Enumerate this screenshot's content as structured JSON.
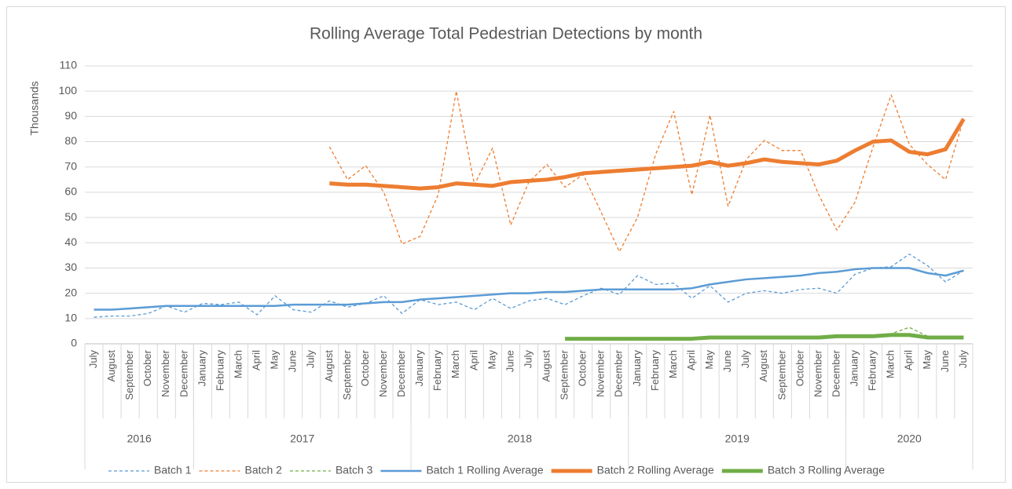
{
  "chart_data": {
    "type": "line",
    "title": "Rolling Average Total Pedestrian Detections by month",
    "y_label": "Thousands",
    "categories": [
      "July",
      "August",
      "September",
      "October",
      "November",
      "December",
      "January",
      "February",
      "March",
      "April",
      "May",
      "June",
      "July",
      "August",
      "September",
      "October",
      "November",
      "December",
      "January",
      "February",
      "March",
      "April",
      "May",
      "June",
      "July",
      "August",
      "September",
      "October",
      "November",
      "December",
      "January",
      "February",
      "March",
      "April",
      "May",
      "June",
      "July",
      "August",
      "September",
      "October",
      "November",
      "December",
      "January",
      "February",
      "March",
      "April",
      "May",
      "June",
      "July"
    ],
    "category_groups": [
      {
        "label": "2016",
        "size": 6
      },
      {
        "label": "2017",
        "size": 12
      },
      {
        "label": "2018",
        "size": 12
      },
      {
        "label": "2019",
        "size": 12
      },
      {
        "label": "2020",
        "size": 7
      }
    ],
    "ylim": [
      0,
      110
    ],
    "yticks": [
      0,
      10,
      20,
      30,
      40,
      50,
      60,
      70,
      80,
      90,
      100,
      110
    ],
    "grid": true,
    "legend": "bottom",
    "series": [
      {
        "name": "Batch 1",
        "color": "#5b9bd5",
        "style": "dashed",
        "line_width": 1.3,
        "values": [
          10.5,
          11,
          11,
          12,
          15,
          12.5,
          16,
          15.5,
          16.5,
          11.5,
          19,
          13.5,
          12.5,
          17,
          14.5,
          16,
          19,
          12,
          17.5,
          15.5,
          16.5,
          13.5,
          18,
          14,
          17,
          18,
          15.5,
          19,
          22,
          19.5,
          27,
          23.5,
          24,
          18,
          23,
          16.5,
          20,
          21,
          20,
          21.5,
          22,
          20,
          27.5,
          30,
          30.5,
          35.5,
          31,
          24.5,
          29
        ]
      },
      {
        "name": "Batch 2",
        "color": "#ed7d31",
        "style": "dashed",
        "line_width": 1.3,
        "values": [
          null,
          null,
          null,
          null,
          null,
          null,
          null,
          null,
          null,
          null,
          null,
          null,
          null,
          78,
          65,
          70.5,
          60,
          39.5,
          42.5,
          59,
          100,
          63,
          77.5,
          47,
          64,
          71,
          62,
          67,
          52,
          36.5,
          50,
          75,
          92,
          59,
          90.5,
          54.5,
          73,
          80.5,
          76.5,
          76.5,
          59,
          45,
          56,
          78,
          98.5,
          79,
          71,
          65,
          89
        ]
      },
      {
        "name": "Batch 3",
        "color": "#70ad47",
        "style": "dashed",
        "line_width": 1.3,
        "values": [
          null,
          null,
          null,
          null,
          null,
          null,
          null,
          null,
          null,
          null,
          null,
          null,
          null,
          null,
          null,
          null,
          null,
          null,
          null,
          null,
          null,
          null,
          null,
          null,
          null,
          null,
          2,
          2,
          2,
          2,
          2,
          2,
          2,
          2,
          2,
          2,
          2,
          2,
          2,
          2,
          2,
          3,
          3,
          2.5,
          4,
          6.5,
          3,
          2,
          2
        ]
      },
      {
        "name": "Batch 1 Rolling Average",
        "color": "#5b9bd5",
        "style": "solid",
        "line_width": 2.5,
        "values": [
          13.5,
          13.5,
          14,
          14.5,
          15,
          15,
          15,
          15,
          15,
          15,
          15,
          15.5,
          15.5,
          15.5,
          15.5,
          16,
          16.5,
          16.5,
          17.5,
          18,
          18.5,
          19,
          19.5,
          20,
          20,
          20.5,
          20.5,
          21,
          21.5,
          21.5,
          21.5,
          21.5,
          21.5,
          22,
          23.5,
          24.5,
          25.5,
          26,
          26.5,
          27,
          28,
          28.5,
          29.5,
          30,
          30,
          30,
          28,
          27,
          29
        ]
      },
      {
        "name": "Batch 2 Rolling Average",
        "color": "#ed7d31",
        "style": "solid",
        "line_width": 5,
        "values": [
          null,
          null,
          null,
          null,
          null,
          null,
          null,
          null,
          null,
          null,
          null,
          null,
          null,
          63.5,
          63,
          63,
          62.5,
          62,
          61.5,
          62,
          63.5,
          63,
          62.5,
          64,
          64.5,
          65,
          66,
          67.5,
          68,
          68.5,
          69,
          69.5,
          70,
          70.5,
          72,
          70.5,
          71.5,
          73,
          72,
          71.5,
          71,
          72.5,
          76.5,
          80,
          80.5,
          76,
          75,
          77,
          89
        ]
      },
      {
        "name": "Batch 3 Rolling Average",
        "color": "#70ad47",
        "style": "solid",
        "line_width": 5,
        "values": [
          null,
          null,
          null,
          null,
          null,
          null,
          null,
          null,
          null,
          null,
          null,
          null,
          null,
          null,
          null,
          null,
          null,
          null,
          null,
          null,
          null,
          null,
          null,
          null,
          null,
          null,
          2,
          2,
          2,
          2,
          2,
          2,
          2,
          2,
          2.5,
          2.5,
          2.5,
          2.5,
          2.5,
          2.5,
          2.5,
          3,
          3,
          3,
          3.5,
          3.5,
          2.5,
          2.5,
          2.5
        ]
      }
    ]
  }
}
